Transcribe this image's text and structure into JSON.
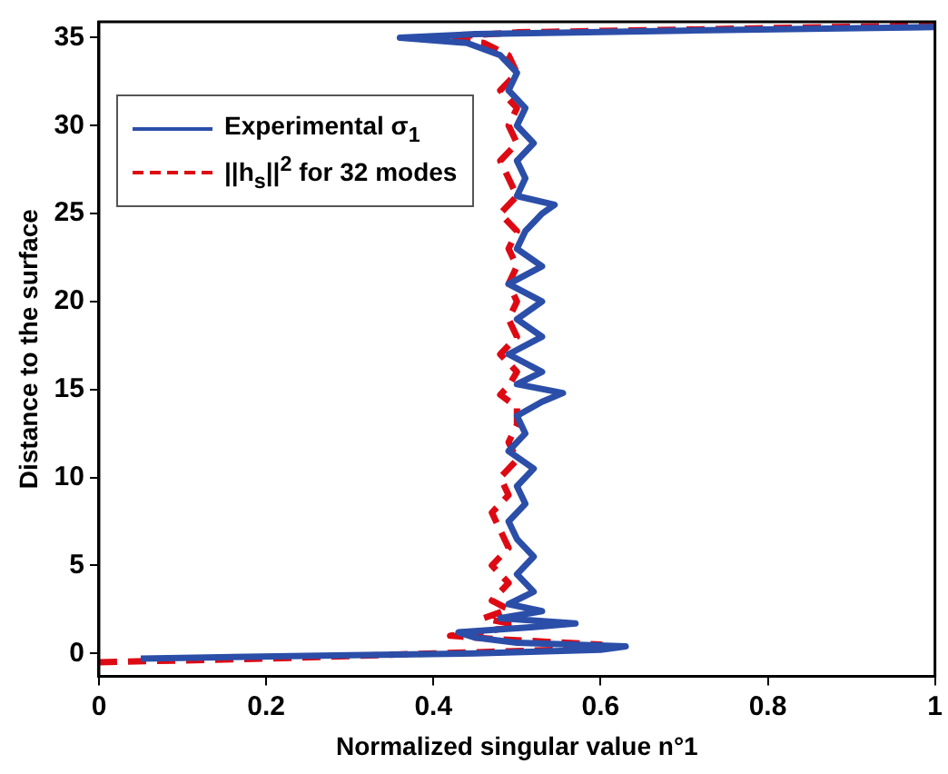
{
  "chart_data": {
    "type": "line",
    "xlabel": "Normalized singular value n°1",
    "ylabel": "Distance to the surface",
    "xlim": [
      0,
      1
    ],
    "ylim": [
      -1.3,
      35.9
    ],
    "xticks": [
      0,
      0.2,
      0.4,
      0.6,
      0.8,
      1
    ],
    "yticks": [
      0,
      5,
      10,
      15,
      20,
      25,
      30,
      35
    ],
    "grid": false,
    "legend": "top left",
    "marker": "none",
    "series": [
      {
        "name": "Experimental σ$_{1}$",
        "color": "#2b4ea8",
        "line_style": "solid",
        "x": [
          0.05,
          0.3,
          0.45,
          0.6,
          0.63,
          0.5,
          0.45,
          0.43,
          0.52,
          0.57,
          0.48,
          0.53,
          0.49,
          0.52,
          0.5,
          0.52,
          0.5,
          0.49,
          0.51,
          0.5,
          0.52,
          0.49,
          0.51,
          0.5,
          0.53,
          0.555,
          0.5,
          0.53,
          0.49,
          0.53,
          0.5,
          0.53,
          0.49,
          0.53,
          0.5,
          0.51,
          0.53,
          0.545,
          0.5,
          0.51,
          0.5,
          0.52,
          0.5,
          0.51,
          0.49,
          0.5,
          0.48,
          0.44,
          0.36,
          0.45,
          0.7,
          1.0
        ],
        "values": [
          -0.3,
          -0.1,
          0,
          0.2,
          0.4,
          0.6,
          0.9,
          1.2,
          1.5,
          1.7,
          2,
          2.4,
          2.8,
          3.5,
          4.5,
          5.5,
          6.5,
          7.5,
          8.5,
          9.5,
          10.5,
          11.5,
          12.5,
          13.5,
          14.3,
          14.8,
          15.3,
          16,
          17,
          18,
          19,
          20,
          21,
          22,
          23,
          24,
          25,
          25.5,
          26,
          27,
          28,
          29,
          30,
          31,
          32,
          33,
          34,
          34.7,
          35,
          35.2,
          35.4,
          35.6
        ]
      },
      {
        "name": "||h$_{s}$||$^{2}$ for 32 modes",
        "color": "#dd0a14",
        "line_style": "dashed",
        "x": [
          0,
          0.2,
          0.4,
          0.55,
          0.6,
          0.48,
          0.42,
          0.47,
          0.5,
          0.46,
          0.49,
          0.47,
          0.49,
          0.47,
          0.49,
          0.48,
          0.47,
          0.49,
          0.48,
          0.5,
          0.49,
          0.5,
          0.5,
          0.48,
          0.49,
          0.5,
          0.48,
          0.5,
          0.49,
          0.5,
          0.49,
          0.5,
          0.49,
          0.5,
          0.48,
          0.5,
          0.49,
          0.48,
          0.5,
          0.49,
          0.5,
          0.48,
          0.5,
          0.49,
          0.46,
          0.4,
          0.5,
          0.75,
          1.0
        ],
        "values": [
          -0.5,
          -0.3,
          0,
          0.2,
          0.5,
          0.8,
          1,
          1.3,
          1.6,
          2,
          2.5,
          3,
          4,
          5,
          6,
          7,
          8,
          9,
          10,
          11,
          12,
          13,
          14,
          14.7,
          15.2,
          16,
          17,
          18,
          19,
          20,
          21,
          22,
          23,
          24,
          25,
          26,
          27,
          28,
          29,
          30,
          31,
          32,
          33,
          34,
          34.7,
          35,
          35.3,
          35.5,
          35.7
        ]
      }
    ]
  }
}
